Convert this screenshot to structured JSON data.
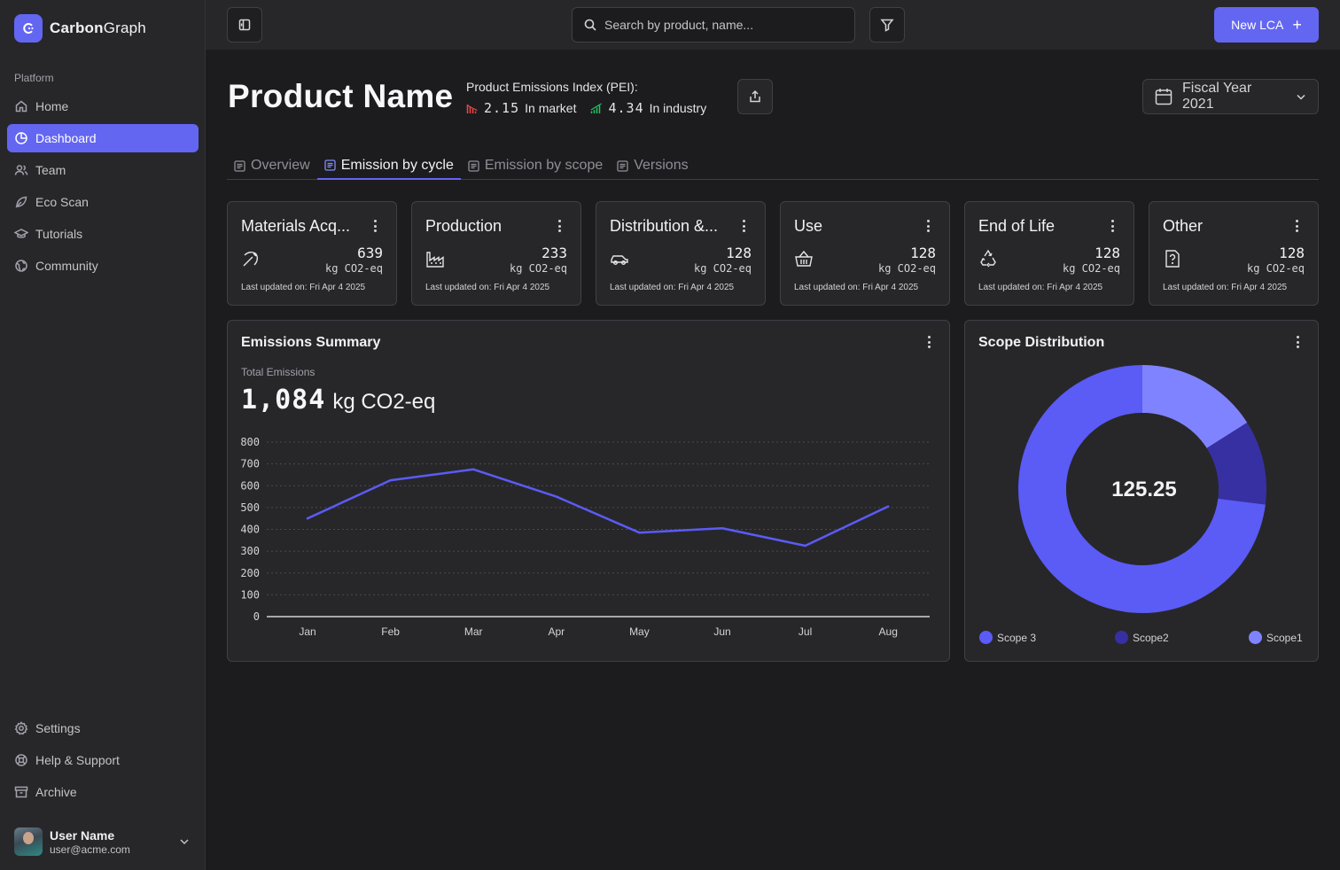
{
  "app": {
    "name_bold": "Carbon",
    "name_rest": "Graph"
  },
  "sidebar": {
    "section": "Platform",
    "items": [
      {
        "label": "Home",
        "icon": "home-icon"
      },
      {
        "label": "Dashboard",
        "icon": "pie-chart-icon",
        "active": true
      },
      {
        "label": "Team",
        "icon": "users-icon"
      },
      {
        "label": "Eco Scan",
        "icon": "leaf-icon"
      },
      {
        "label": "Tutorials",
        "icon": "graduation-cap-icon"
      },
      {
        "label": "Community",
        "icon": "globe-icon"
      }
    ],
    "bottom_items": [
      {
        "label": "Settings",
        "icon": "gear-icon"
      },
      {
        "label": "Help & Support",
        "icon": "lifebuoy-icon"
      },
      {
        "label": "Archive",
        "icon": "archive-icon"
      }
    ],
    "user": {
      "name": "User Name",
      "email": "user@acme.com"
    }
  },
  "topbar": {
    "search_placeholder": "Search by product, name...",
    "new_button": "New LCA",
    "new_button_icon": "+"
  },
  "header": {
    "title": "Product Name",
    "pei_label": "Product Emissions Index (PEI):",
    "pei_market_value": "2.15",
    "pei_market_label": "In market",
    "pei_industry_value": "4.34",
    "pei_industry_label": "In industry",
    "fiscal_year": "Fiscal Year 2021"
  },
  "tabs": [
    {
      "label": "Overview",
      "active": false
    },
    {
      "label": "Emission by cycle",
      "active": true
    },
    {
      "label": "Emission by scope",
      "active": false
    },
    {
      "label": "Versions",
      "active": false
    }
  ],
  "cards": [
    {
      "title": "Materials Acq...",
      "value": "639",
      "unit": "kg CO2-eq",
      "updated": "Last updated on: Fri Apr 4 2025",
      "icon": "pickaxe-icon"
    },
    {
      "title": "Production",
      "value": "233",
      "unit": "kg CO2-eq",
      "updated": "Last updated on: Fri Apr 4 2025",
      "icon": "factory-icon"
    },
    {
      "title": "Distribution &...",
      "value": "128",
      "unit": "kg CO2-eq",
      "updated": "Last updated on: Fri Apr 4 2025",
      "icon": "car-icon"
    },
    {
      "title": "Use",
      "value": "128",
      "unit": "kg CO2-eq",
      "updated": "Last updated on: Fri Apr 4 2025",
      "icon": "basket-icon"
    },
    {
      "title": "End of Life",
      "value": "128",
      "unit": "kg CO2-eq",
      "updated": "Last updated on: Fri Apr 4 2025",
      "icon": "recycle-icon"
    },
    {
      "title": "Other",
      "value": "128",
      "unit": "kg CO2-eq",
      "updated": "Last updated on: Fri Apr 4 2025",
      "icon": "file-question-icon"
    }
  ],
  "summary": {
    "title": "Emissions Summary",
    "total_label": "Total Emissions",
    "total_value": "1,084",
    "total_unit": "kg CO2-eq"
  },
  "scope": {
    "title": "Scope Distribution",
    "center_value": "125.25",
    "legend": [
      {
        "label": "Scope 3",
        "color": "#5b5bf6"
      },
      {
        "label": "Scope2",
        "color": "#3730a3"
      },
      {
        "label": "Scope1",
        "color": "#8083ff"
      }
    ]
  },
  "chart_data": [
    {
      "type": "line",
      "categories": [
        "Jan",
        "Feb",
        "Mar",
        "Apr",
        "May",
        "Jun",
        "Jul",
        "Aug"
      ],
      "series": [
        {
          "values": [
            450,
            625,
            675,
            550,
            385,
            405,
            325,
            505
          ],
          "color": "#5b5bf6"
        }
      ],
      "ylim": [
        0,
        800
      ],
      "yticks": [
        0,
        100,
        200,
        300,
        400,
        500,
        600,
        700,
        800
      ],
      "grid": true
    },
    {
      "type": "pie",
      "variant": "donut",
      "slices": [
        {
          "label": "Scope 3",
          "value": 73,
          "color": "#5b5bf6"
        },
        {
          "label": "Scope2",
          "value": 11,
          "color": "#3730a3"
        },
        {
          "label": "Scope1",
          "value": 16,
          "color": "#8083ff"
        }
      ],
      "center_label": "125.25"
    }
  ]
}
